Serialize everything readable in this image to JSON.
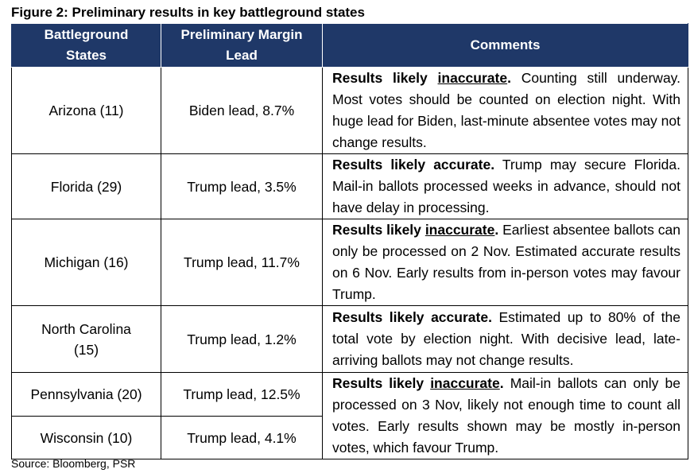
{
  "figure": {
    "title": "Figure 2: Preliminary results in key battleground states",
    "source": "Source: Bloomberg, PSR"
  },
  "table": {
    "headers": {
      "state_line1": "Battleground",
      "state_line2": "States",
      "margin_line1": "Preliminary Margin",
      "margin_line2": "Lead",
      "comments": "Comments"
    },
    "rows": [
      {
        "state": "Arizona (11)",
        "margin": "Biden lead, 8.7%",
        "comment_prefix": "Results likely",
        "comment_key": "inaccurate",
        "comment_key_punct": ".",
        "comment_rest": " Counting still underway. Most votes should be counted on election night. With huge lead for Biden, last-minute absentee votes may not change results."
      },
      {
        "state": "Florida (29)",
        "margin": "Trump lead, 3.5%",
        "comment_prefix": "Results likely accurate.",
        "comment_rest": " Trump may secure Florida. Mail-in ballots processed weeks in advance, should not have delay in processing."
      },
      {
        "state": "Michigan (16)",
        "margin": "Trump lead, 11.7%",
        "comment_prefix": "Results likely",
        "comment_key": "inaccurate",
        "comment_key_punct": ".",
        "comment_rest": " Earliest absentee ballots can only be processed on 2 Nov. Estimated accurate results on 6 Nov. Early results from in-person votes may favour Trump."
      },
      {
        "state_line1": "North Carolina",
        "state_line2": "(15)",
        "margin": "Trump lead, 1.2%",
        "comment_prefix": "Results likely accurate.",
        "comment_rest": " Estimated up to 80% of the total vote by election night. With decisive lead, late-arriving ballots may not change results."
      },
      {
        "state": "Pennsylvania (20)",
        "margin": "Trump lead, 12.5%",
        "comment_prefix": "Results likely",
        "comment_key": "inaccurate",
        "comment_key_punct": ".",
        "comment_rest": " Mail-in ballots can only be processed on 3 Nov, likely not enough time to count all votes. Early results shown may be mostly in-person votes, which favour Trump."
      },
      {
        "state": "Wisconsin (10)",
        "margin": "Trump lead, 4.1%"
      }
    ]
  },
  "colors": {
    "header_bg": "#1f3868",
    "header_text": "#ffffff",
    "border": "#000000"
  }
}
